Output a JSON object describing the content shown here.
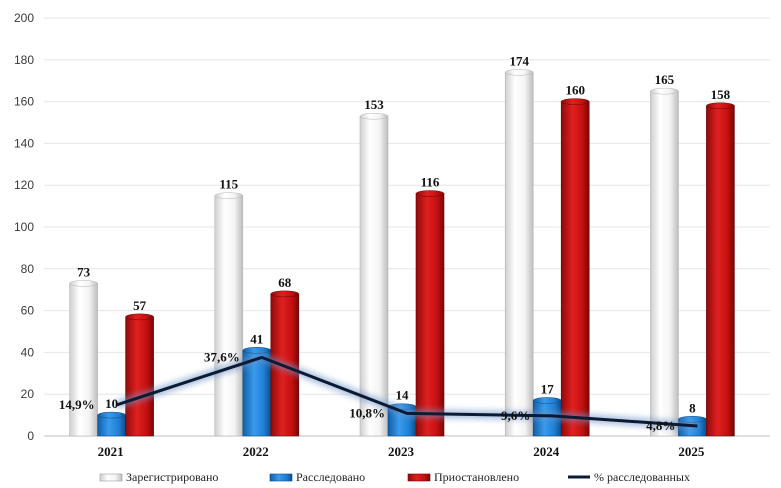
{
  "chart_data": {
    "type": "bar",
    "title": "",
    "xlabel": "",
    "ylabel": "",
    "categories": [
      "2021",
      "2022",
      "2023",
      "2024",
      "2025"
    ],
    "ylim": [
      0,
      200
    ],
    "yticks": [
      "0",
      "20",
      "40",
      "60",
      "80",
      "100",
      "120",
      "140",
      "160",
      "180",
      "200"
    ],
    "grid": true,
    "legend_position": "bottom",
    "series": [
      {
        "name": "Зарегистрировано",
        "color": "#f2f2f2",
        "values": [
          73,
          115,
          153,
          174,
          165
        ],
        "labels": [
          "73",
          "115",
          "153",
          "174",
          "165"
        ]
      },
      {
        "name": "Расследовано",
        "color": "#1f7fd4",
        "values": [
          10,
          41,
          14,
          17,
          8
        ],
        "labels": [
          "10",
          "41",
          "14",
          "17",
          "8"
        ]
      },
      {
        "name": "Приостановлено",
        "color": "#cc1010",
        "values": [
          57,
          68,
          116,
          160,
          158
        ],
        "labels": [
          "57",
          "68",
          "116",
          "160",
          "158"
        ]
      }
    ],
    "line_series": {
      "name": "% расследованных",
      "type": "line",
      "color": "#0d1a33",
      "values": [
        14.9,
        37.6,
        10.8,
        9.6,
        4.8
      ],
      "labels": [
        "14,9%",
        "37,6%",
        "10,8%",
        "9,6%",
        "4,8%"
      ]
    }
  }
}
